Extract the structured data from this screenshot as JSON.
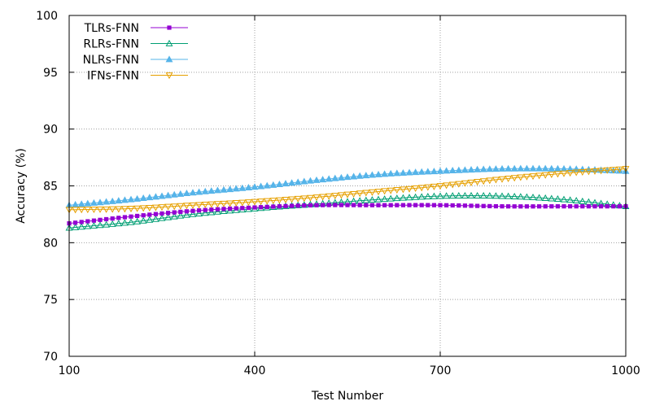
{
  "chart_data": {
    "type": "line",
    "title": "",
    "xlabel": "Test Number",
    "ylabel": "Accuracy (%)",
    "xlim": [
      100,
      1000
    ],
    "ylim": [
      70,
      100
    ],
    "xticks": [
      100,
      400,
      700,
      1000
    ],
    "yticks": [
      70,
      75,
      80,
      85,
      90,
      95,
      100
    ],
    "grid": true,
    "legend_position": "top-left",
    "series": [
      {
        "name": "TLRs-FNN",
        "color": "#9400d3",
        "marker": "filled-square",
        "x": [
          100,
          200,
          300,
          400,
          500,
          600,
          700,
          800,
          900,
          1000
        ],
        "y": [
          81.7,
          82.3,
          82.8,
          83.1,
          83.3,
          83.3,
          83.3,
          83.2,
          83.2,
          83.2
        ]
      },
      {
        "name": "RLRs-FNN",
        "color": "#009e73",
        "marker": "open-triangle-up",
        "x": [
          100,
          200,
          300,
          400,
          500,
          600,
          700,
          800,
          900,
          1000
        ],
        "y": [
          81.3,
          81.8,
          82.5,
          83.0,
          83.4,
          83.8,
          84.1,
          84.1,
          83.8,
          83.2
        ]
      },
      {
        "name": "NLRs-FNN",
        "color": "#56b4e9",
        "marker": "filled-triangle-up",
        "x": [
          100,
          200,
          300,
          400,
          500,
          600,
          700,
          800,
          900,
          1000
        ],
        "y": [
          83.3,
          83.8,
          84.4,
          84.9,
          85.5,
          86.0,
          86.3,
          86.5,
          86.5,
          86.3
        ]
      },
      {
        "name": "IFNs-FNN",
        "color": "#e6a000",
        "marker": "open-triangle-down",
        "x": [
          100,
          200,
          300,
          400,
          500,
          600,
          700,
          800,
          900,
          1000
        ],
        "y": [
          82.9,
          83.0,
          83.3,
          83.6,
          84.0,
          84.5,
          85.0,
          85.6,
          86.1,
          86.5
        ]
      }
    ]
  }
}
